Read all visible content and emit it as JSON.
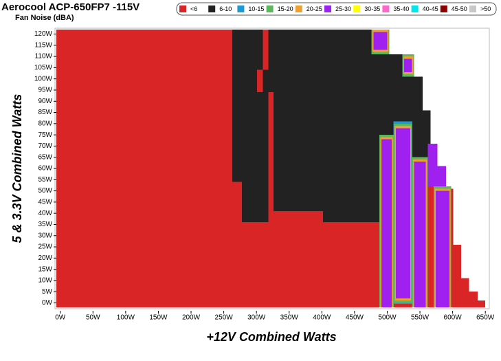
{
  "chart_data": {
    "type": "heatmap",
    "title": "Aerocool ACP-650FP7 -115V",
    "subtitle": "Fan Noise (dBA)",
    "x_label": "+12V Combined Watts",
    "y_label": "5 & 3.3V Combined Watts",
    "xlim": [
      -6,
      654
    ],
    "ylim": [
      -2,
      122
    ],
    "xticks": [
      {
        "value": 0,
        "label": "0W"
      },
      {
        "value": 50,
        "label": "50W"
      },
      {
        "value": 100,
        "label": "100W"
      },
      {
        "value": 150,
        "label": "150W"
      },
      {
        "value": 200,
        "label": "200W"
      },
      {
        "value": 250,
        "label": "250W"
      },
      {
        "value": 300,
        "label": "300W"
      },
      {
        "value": 350,
        "label": "350W"
      },
      {
        "value": 400,
        "label": "400W"
      },
      {
        "value": 450,
        "label": "450W"
      },
      {
        "value": 500,
        "label": "500W"
      },
      {
        "value": 550,
        "label": "550W"
      },
      {
        "value": 600,
        "label": "600W"
      },
      {
        "value": 650,
        "label": "650W"
      }
    ],
    "yticks": [
      {
        "value": 0,
        "label": "0W"
      },
      {
        "value": 5,
        "label": "5W"
      },
      {
        "value": 10,
        "label": "10W"
      },
      {
        "value": 15,
        "label": "15W"
      },
      {
        "value": 20,
        "label": "20W"
      },
      {
        "value": 25,
        "label": "25W"
      },
      {
        "value": 30,
        "label": "30W"
      },
      {
        "value": 35,
        "label": "35W"
      },
      {
        "value": 40,
        "label": "40W"
      },
      {
        "value": 45,
        "label": "45W"
      },
      {
        "value": 50,
        "label": "50W"
      },
      {
        "value": 55,
        "label": "55W"
      },
      {
        "value": 60,
        "label": "60W"
      },
      {
        "value": 65,
        "label": "65W"
      },
      {
        "value": 70,
        "label": "70W"
      },
      {
        "value": 75,
        "label": "75W"
      },
      {
        "value": 80,
        "label": "80W"
      },
      {
        "value": 85,
        "label": "85W"
      },
      {
        "value": 90,
        "label": "90W"
      },
      {
        "value": 95,
        "label": "95W"
      },
      {
        "value": 100,
        "label": "100W"
      },
      {
        "value": 105,
        "label": "105W"
      },
      {
        "value": 110,
        "label": "110W"
      },
      {
        "value": 115,
        "label": "115W"
      },
      {
        "value": 120,
        "label": "120W"
      }
    ],
    "series": [
      {
        "name": "<6",
        "color": "#d92525",
        "rects": [
          [
            -6,
            650,
            -2,
            1
          ],
          [
            -6,
            638,
            1,
            5
          ],
          [
            -6,
            625,
            5,
            11
          ],
          [
            -6,
            613,
            11,
            26
          ],
          [
            -6,
            601,
            26,
            51
          ],
          [
            -6,
            590,
            51,
            61
          ],
          [
            -6,
            577,
            61,
            71
          ],
          [
            -6,
            566,
            71,
            86
          ],
          [
            -6,
            554,
            86,
            101
          ],
          [
            -6,
            541,
            101,
            111
          ],
          [
            -6,
            503,
            111,
            122
          ]
        ]
      },
      {
        "name": "6-10",
        "color": "#222222",
        "rects": [
          [
            263,
            301,
            54,
            122
          ],
          [
            278,
            318,
            36,
            54
          ],
          [
            301,
            310,
            104,
            122
          ],
          [
            301,
            318,
            36,
            94
          ],
          [
            310,
            318,
            94,
            104
          ],
          [
            318,
            326,
            94,
            122
          ],
          [
            326,
            476,
            41,
            122
          ],
          [
            402,
            488,
            36,
            41
          ],
          [
            476,
            523,
            41,
            111
          ],
          [
            523,
            554,
            41,
            101
          ],
          [
            554,
            566,
            65,
            86
          ]
        ]
      },
      {
        "name": "10-15",
        "color": "#1c9ad6",
        "rects": [
          [
            509.5,
            538.5,
            -0.5,
            81
          ]
        ]
      },
      {
        "name": "15-20",
        "color": "#5cb85c",
        "rects": [
          [
            488,
            510,
            -2,
            75
          ],
          [
            510,
            538,
            0,
            80
          ],
          [
            538,
            562,
            -2,
            65
          ],
          [
            571,
            598,
            -2,
            52
          ],
          [
            476,
            503,
            111,
            122
          ],
          [
            523,
            541,
            101,
            111
          ]
        ]
      },
      {
        "name": "20-25",
        "color": "#f0a030",
        "rects": [
          [
            489.5,
            508.5,
            -2,
            74
          ],
          [
            511.5,
            536.5,
            1,
            79
          ],
          [
            539.5,
            560.5,
            -2,
            64
          ],
          [
            572.5,
            596.5,
            -2,
            51
          ],
          [
            477.5,
            501.5,
            112,
            122
          ],
          [
            524.5,
            539.5,
            102,
            110
          ]
        ]
      },
      {
        "name": "25-30",
        "color": "#a020f0",
        "rects": [
          [
            491,
            507,
            -2,
            73
          ],
          [
            513,
            535,
            2,
            78
          ],
          [
            541,
            559,
            -2,
            63
          ],
          [
            562,
            577,
            52,
            71
          ],
          [
            577,
            590,
            52,
            61
          ],
          [
            574,
            595,
            -2,
            50
          ],
          [
            479,
            500,
            113,
            121
          ],
          [
            526,
            538,
            103,
            109
          ]
        ]
      },
      {
        "name": "30-35",
        "color": "#ffff00",
        "rects": []
      },
      {
        "name": "35-40",
        "color": "#ff66cc",
        "rects": []
      },
      {
        "name": "40-45",
        "color": "#00e5ee",
        "rects": []
      },
      {
        "name": "45-50",
        "color": "#8b0000",
        "rects": []
      },
      {
        "name": ">50",
        "color": "#c8c8c8",
        "rects": []
      }
    ]
  }
}
